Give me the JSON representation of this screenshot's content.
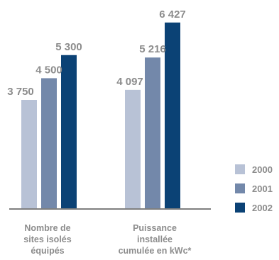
{
  "chart_data": {
    "type": "bar",
    "categories": [
      "Nombre de sites isolés équipés",
      "Puissance installée cumulée en kWc*"
    ],
    "category_lines": [
      [
        "Nombre de",
        "sites isolés",
        "équipés"
      ],
      [
        "Puissance",
        "installée",
        "cumulée en kWc*"
      ]
    ],
    "series": [
      {
        "name": "2000",
        "color": "#b8c2d6",
        "values": [
          3750,
          4097
        ],
        "labels": [
          "3 750",
          "4 097"
        ]
      },
      {
        "name": "2001",
        "color": "#7388aa",
        "values": [
          4500,
          5216
        ],
        "labels": [
          "4 500",
          "5 216"
        ]
      },
      {
        "name": "2002",
        "color": "#0b4275",
        "values": [
          5300,
          6427
        ],
        "labels": [
          "5 300",
          "6 427"
        ]
      }
    ],
    "legend_position": "right",
    "grid": false,
    "baseline_color": "#7f7f7f"
  }
}
